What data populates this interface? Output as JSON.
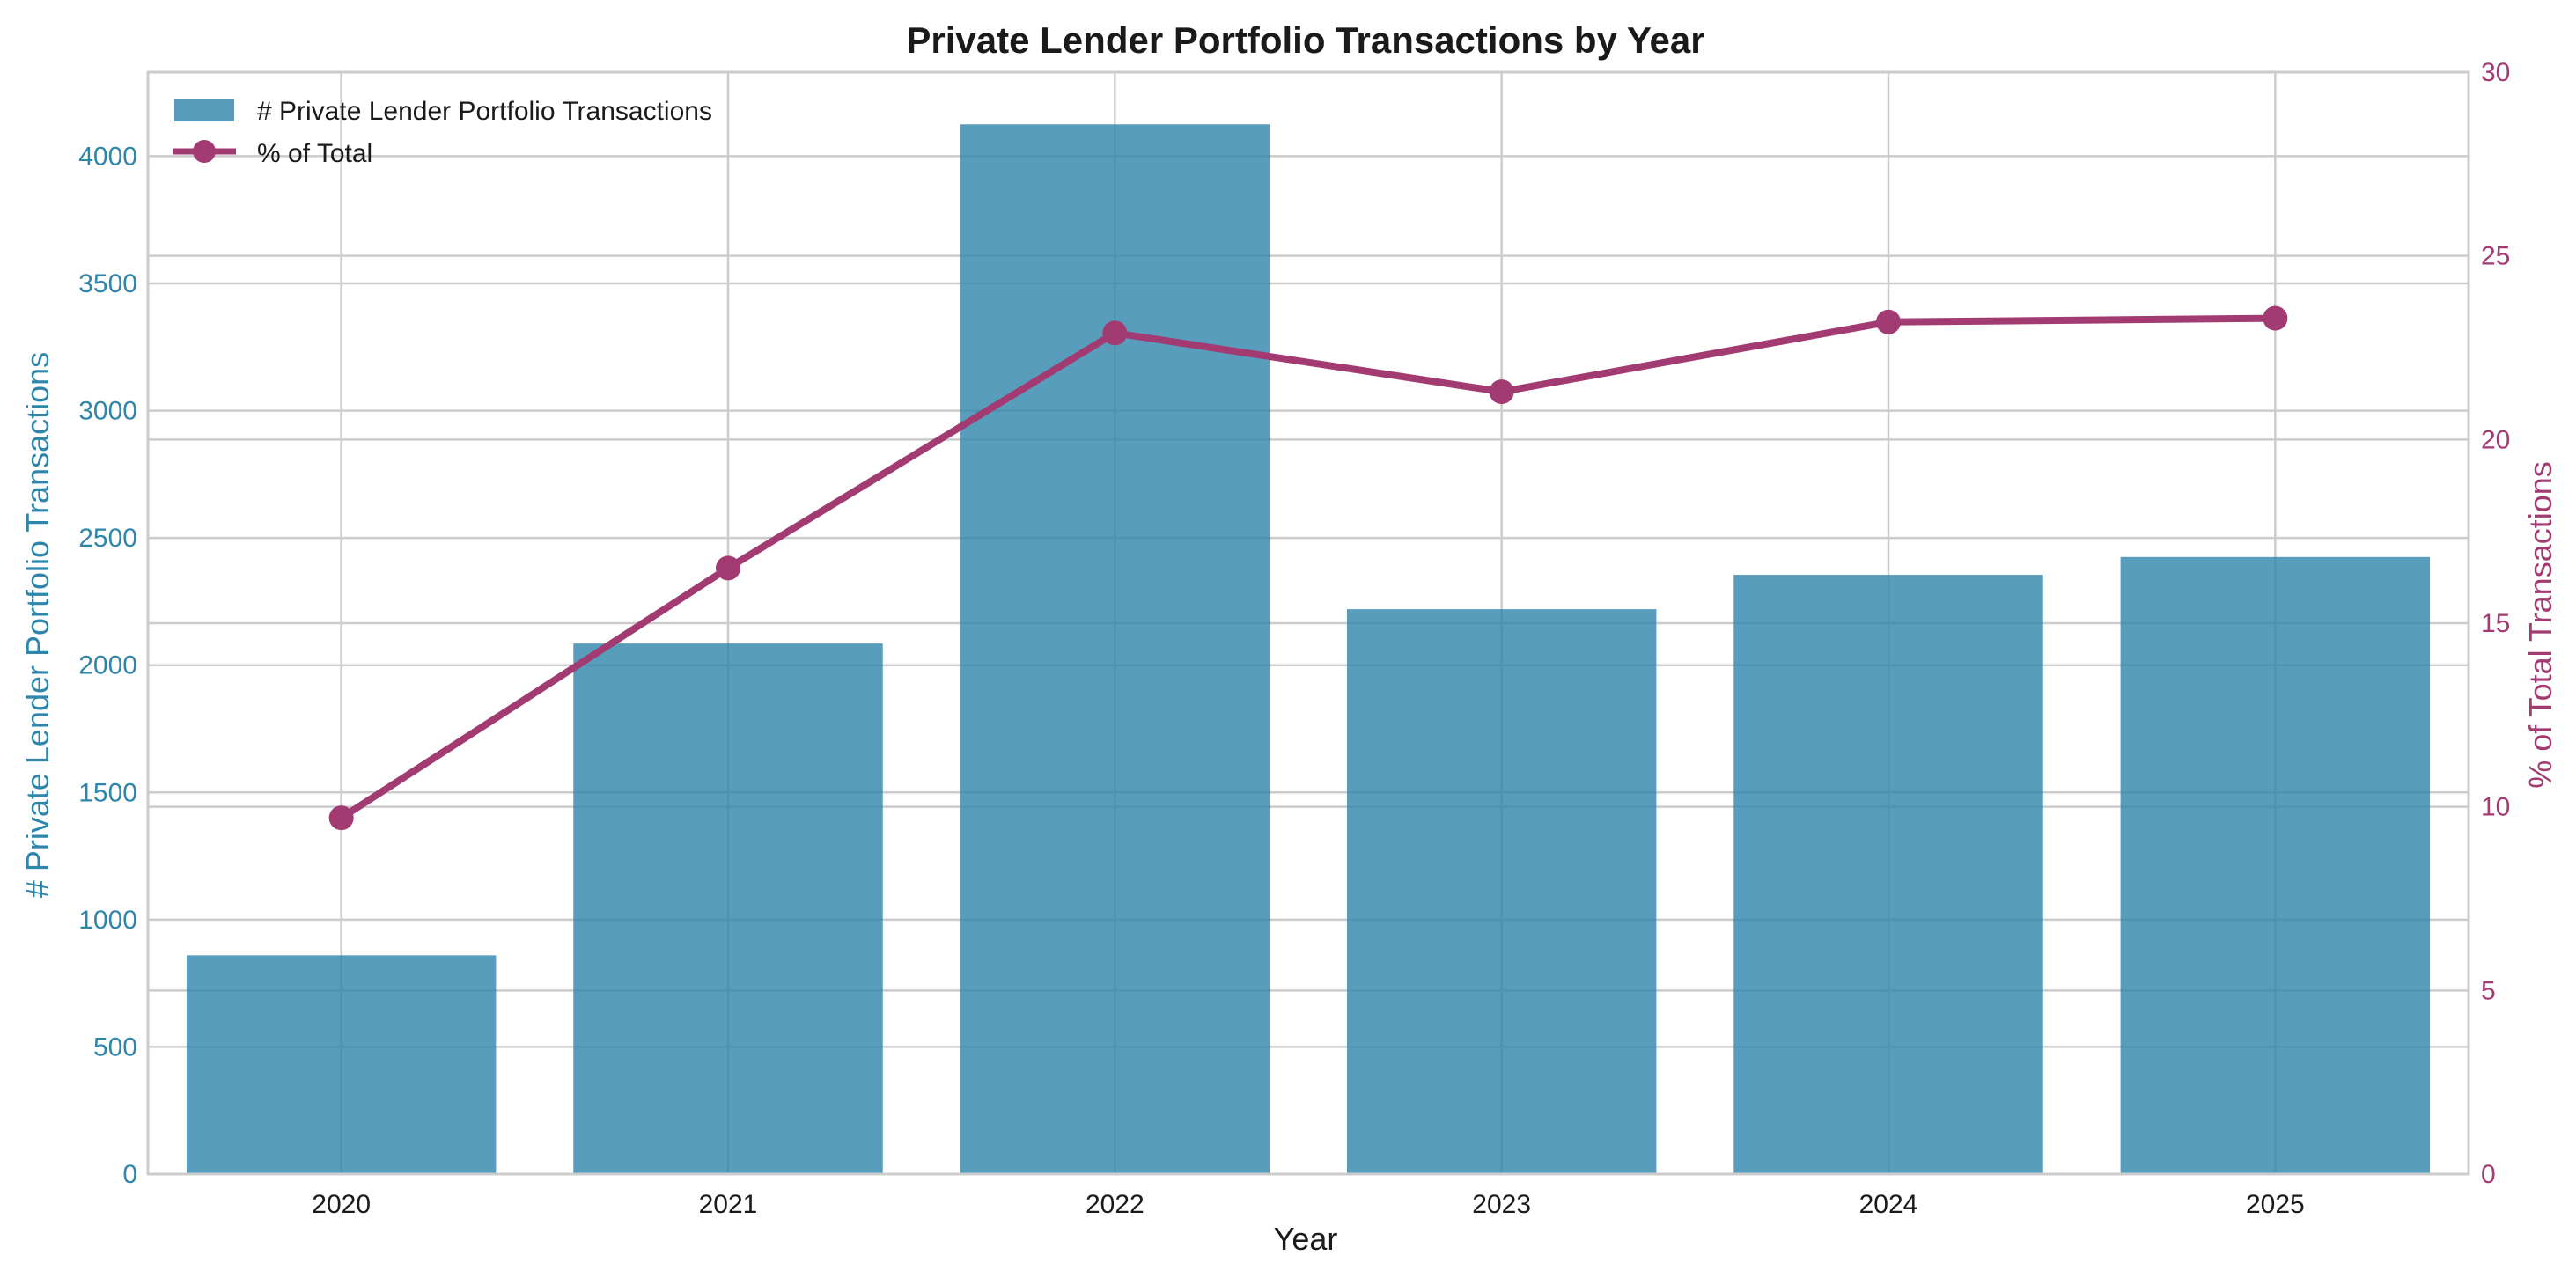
{
  "chart_data": {
    "type": "bar+line",
    "title": "Private Lender Portfolio Transactions by Year",
    "xlabel": "Year",
    "ylabel_left": "# Private Lender Portfolio Transactions",
    "ylabel_right": "% of Total Transactions",
    "categories": [
      "2020",
      "2021",
      "2022",
      "2023",
      "2024",
      "2025"
    ],
    "series": [
      {
        "name": "# Private Lender Portfolio Transactions",
        "type": "bar",
        "axis": "left",
        "values": [
          860,
          2085,
          4125,
          2220,
          2355,
          2425
        ]
      },
      {
        "name": "% of Total",
        "type": "line",
        "axis": "right",
        "values": [
          9.7,
          16.5,
          22.9,
          21.3,
          23.2,
          23.3
        ]
      }
    ],
    "ylim_left": [
      0,
      4330
    ],
    "ylim_right": [
      0,
      30
    ],
    "yticks_left": [
      "0",
      "500",
      "1000",
      "1500",
      "2000",
      "2500",
      "3000",
      "3500",
      "4000"
    ],
    "yticks_right": [
      "0",
      "5",
      "10",
      "15",
      "20",
      "25",
      "30"
    ],
    "grid": true,
    "legend": "top-left",
    "colors": {
      "bar": "#2e86ab",
      "line": "#a23b72",
      "left_axis": "#2e86ab",
      "right_axis": "#a23b72",
      "grid": "#cccccc",
      "text": "#1a1a1a"
    }
  }
}
